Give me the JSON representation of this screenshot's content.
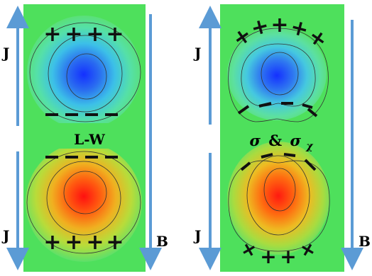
{
  "panels": {
    "left": {
      "caption": "L-W",
      "current_label_top": "J",
      "current_label_bottom": "J",
      "field_label": "B"
    },
    "right": {
      "caption_sigma": "σ",
      "caption_amp": "&",
      "caption_sigma_chi": "σ",
      "caption_chi_subscript": "χ",
      "current_label_top": "J",
      "current_label_bottom": "J",
      "field_label": "B"
    }
  },
  "signs": {
    "plus": "+",
    "minus": "−"
  },
  "colors": {
    "background_field": "#4de05a",
    "negative_core": "#1f4dff",
    "positive_core": "#ff1a10",
    "arrow": "#5b9bd5"
  }
}
